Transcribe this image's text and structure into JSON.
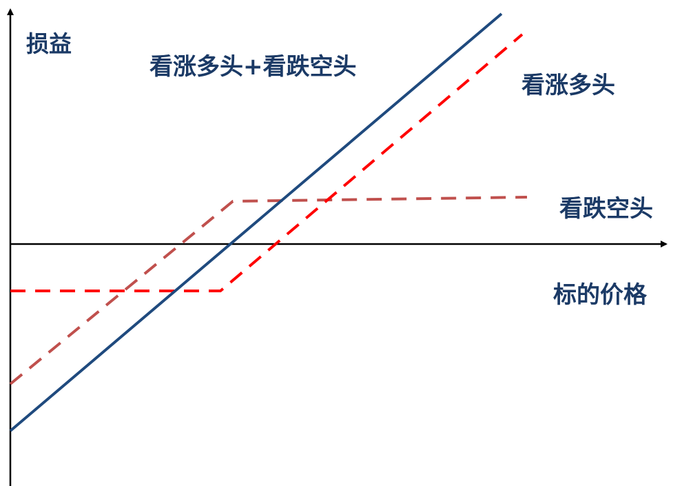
{
  "axes": {
    "y_label": "损益",
    "x_label": "标的价格"
  },
  "lines": {
    "combined": {
      "label": "看涨多头+看跌空头",
      "color": "#1f4a7e",
      "style": "solid"
    },
    "long_call": {
      "label": "看涨多头",
      "color": "#ff0000",
      "style": "dashed"
    },
    "short_put": {
      "label": "看跌空头",
      "color": "#c0504d",
      "style": "dashed"
    }
  },
  "colors": {
    "axis": "#000000",
    "label_text": "#1b3a66"
  }
}
